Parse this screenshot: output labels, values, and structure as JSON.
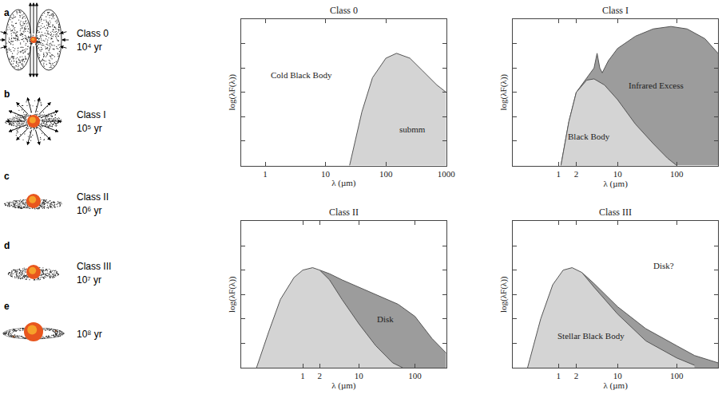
{
  "diagram": {
    "stages": [
      {
        "letter": "a",
        "class": "Class 0",
        "age": "10⁴ yr"
      },
      {
        "letter": "b",
        "class": "Class I",
        "age": "10⁵ yr"
      },
      {
        "letter": "c",
        "class": "Class II",
        "age": "10⁶ yr"
      },
      {
        "letter": "d",
        "class": "Class III",
        "age": "10⁷ yr"
      },
      {
        "letter": "e",
        "age": "10⁸ yr"
      }
    ]
  },
  "chart_data": [
    {
      "type": "area",
      "title": "Class 0",
      "x_label": "λ (µm)",
      "y_label": "log(λF(λ))",
      "log": "x",
      "grid": false,
      "tick_labels": "x",
      "xlim": [
        0.4,
        1000
      ],
      "xticks": [
        1,
        10,
        100,
        1000
      ],
      "ylim": [
        0,
        6
      ],
      "yticks": [
        1,
        2,
        3,
        4,
        5
      ],
      "series": [
        {
          "color": "#d4d4d4",
          "x": [
            25,
            40,
            60,
            100,
            150,
            250,
            400,
            700,
            1000
          ],
          "values": [
            0,
            2.2,
            3.6,
            4.4,
            4.6,
            4.4,
            3.9,
            3.3,
            3.0
          ]
        }
      ],
      "annotations": [
        {
          "text": "Cold Black Body",
          "x": 4,
          "y": 3.7
        },
        {
          "text": "submm",
          "x": 280,
          "y": 1.5
        }
      ]
    },
    {
      "type": "area",
      "title": "Class I",
      "x_label": "λ (µm)",
      "y_label": "log(λF(λ))",
      "log": "x",
      "grid": false,
      "tick_labels": "x",
      "xlim": [
        0.17,
        500
      ],
      "xticks": [
        1,
        2,
        10,
        100
      ],
      "ylim": [
        0,
        6
      ],
      "yticks": [
        1,
        2,
        3,
        4,
        5
      ],
      "series": [
        {
          "color": "#9c9c9c",
          "x": [
            1.1,
            1.5,
            2,
            3,
            4,
            4.5,
            5,
            5.5,
            7,
            10,
            20,
            40,
            80,
            150,
            300,
            500
          ],
          "values": [
            0,
            1.8,
            3.0,
            3.6,
            4.0,
            4.6,
            4.0,
            3.8,
            4.3,
            4.8,
            5.3,
            5.6,
            5.7,
            5.6,
            5.2,
            4.6
          ]
        },
        {
          "color": "#d4d4d4",
          "x": [
            1.1,
            1.5,
            2,
            3,
            4,
            6,
            10,
            20,
            40,
            70,
            100
          ],
          "values": [
            0,
            1.8,
            3.0,
            3.5,
            3.55,
            3.3,
            2.7,
            1.7,
            0.9,
            0.3,
            0
          ]
        }
      ],
      "annotations": [
        {
          "text": "Infrared Excess",
          "x": 45,
          "y": 3.3
        },
        {
          "text": "Black Body",
          "x": 3.3,
          "y": 1.2
        }
      ]
    },
    {
      "type": "area",
      "title": "Class II",
      "x_label": "λ (µm)",
      "y_label": "log(λF(λ))",
      "log": "x",
      "grid": false,
      "tick_labels": "x",
      "xlim": [
        0.08,
        360
      ],
      "xticks": [
        1,
        2,
        10,
        100
      ],
      "ylim": [
        0,
        6
      ],
      "yticks": [
        1,
        2,
        3,
        4,
        5
      ],
      "series": [
        {
          "color": "#9c9c9c",
          "x": [
            2,
            3,
            5,
            10,
            20,
            50,
            100,
            200,
            360
          ],
          "values": [
            4.0,
            3.85,
            3.6,
            3.3,
            3.0,
            2.6,
            2.1,
            1.2,
            0.6
          ]
        },
        {
          "color": "#d4d4d4",
          "x": [
            0.15,
            0.25,
            0.4,
            0.7,
            1,
            1.5,
            2,
            3,
            5,
            10,
            20,
            40,
            60
          ],
          "values": [
            0,
            1.5,
            2.8,
            3.7,
            4.0,
            4.1,
            4.0,
            3.6,
            2.8,
            1.8,
            0.9,
            0.2,
            0
          ]
        }
      ],
      "annotations": [
        {
          "text": "Disk",
          "x": 30,
          "y": 2.0
        }
      ]
    },
    {
      "type": "area",
      "title": "Class III",
      "x_label": "λ (µm)",
      "y_label": "log(λF(λ))",
      "log": "x",
      "grid": false,
      "tick_labels": "x",
      "xlim": [
        0.17,
        500
      ],
      "xticks": [
        1,
        2,
        10,
        100
      ],
      "ylim": [
        0,
        6
      ],
      "yticks": [
        1,
        2,
        3,
        4,
        5
      ],
      "series": [
        {
          "color": "#9c9c9c",
          "x": [
            2.5,
            4,
            10,
            30,
            100,
            200,
            500
          ],
          "values": [
            3.9,
            3.45,
            2.5,
            1.6,
            0.9,
            0.5,
            0.2
          ]
        },
        {
          "color": "#d4d4d4",
          "x": [
            0.3,
            0.5,
            0.8,
            1.2,
            1.7,
            2.5,
            4,
            10,
            30,
            100,
            200
          ],
          "values": [
            0,
            2.0,
            3.4,
            4.0,
            4.1,
            3.9,
            3.3,
            2.2,
            1.1,
            0.4,
            0.1
          ]
        }
      ],
      "annotations": [
        {
          "text": "Disk?",
          "x": 60,
          "y": 4.2
        },
        {
          "text": "Stellar Black Body",
          "x": 3.5,
          "y": 1.3
        }
      ]
    }
  ]
}
